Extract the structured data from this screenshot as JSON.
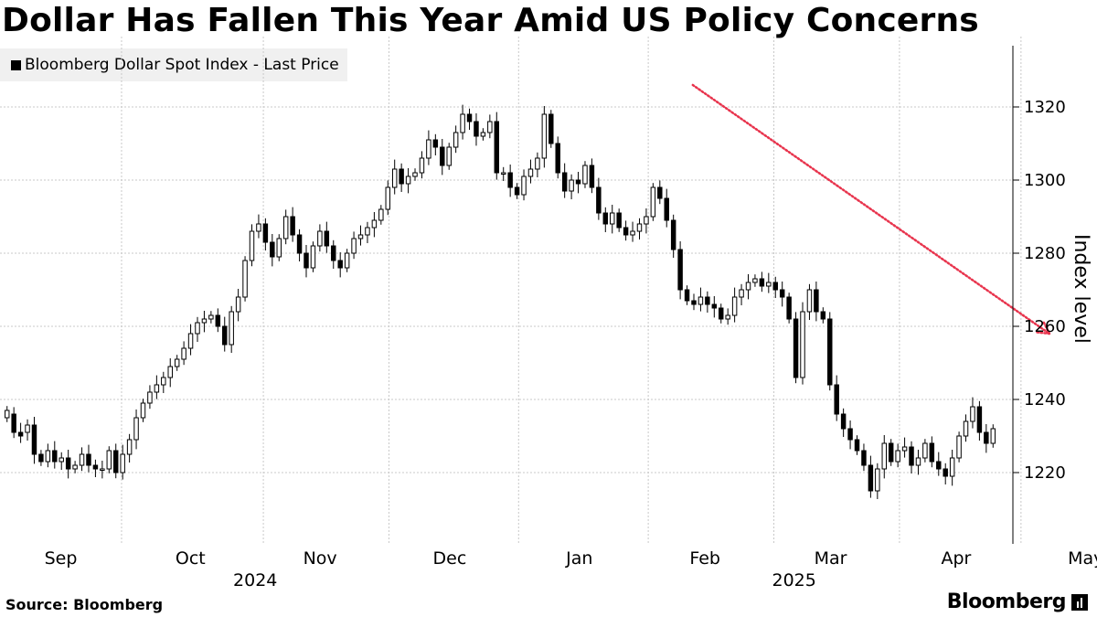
{
  "title": "Dollar Has Fallen This Year Amid US Policy Concerns",
  "legend_label": "Bloomberg Dollar Spot Index - Last Price",
  "source": "Source: Bloomberg",
  "brand": "Bloomberg",
  "colors": {
    "candle": "#000000",
    "arrow": "#e8344d",
    "grid": "#c8c8c8",
    "legend_bg": "#f0f0f0"
  },
  "chart_data": {
    "type": "candlestick",
    "title": "Dollar Has Fallen This Year Amid US Policy Concerns",
    "series_name": "Bloomberg Dollar Spot Index - Last Price",
    "ylabel": "Index level",
    "ylim": [
      1205,
      1335
    ],
    "yticks": [
      1220,
      1240,
      1260,
      1280,
      1300,
      1320
    ],
    "x_range": [
      0,
      250
    ],
    "x_ticks": [
      {
        "label": "Sep",
        "x": 15
      },
      {
        "label": "Oct",
        "x": 47
      },
      {
        "label": "Nov",
        "x": 79
      },
      {
        "label": "Dec",
        "x": 111
      },
      {
        "label": "Jan",
        "x": 143
      },
      {
        "label": "Feb",
        "x": 174
      },
      {
        "label": "Mar",
        "x": 205
      },
      {
        "label": "Apr",
        "x": 236
      },
      {
        "label": "May",
        "x": 268
      }
    ],
    "year_labels": [
      {
        "label": "2024",
        "x": 63
      },
      {
        "label": "2025",
        "x": 196
      }
    ],
    "gridlines_x": [
      30,
      65,
      96,
      128,
      160,
      191,
      222,
      252
    ],
    "annotation_arrow": {
      "from": [
        171,
        1326
      ],
      "to": [
        259,
        1258
      ],
      "style": "dotted"
    },
    "points": [
      [
        1235,
        1237
      ],
      [
        1236,
        1231
      ],
      [
        1231,
        1230
      ],
      [
        1231,
        1233
      ],
      [
        1233,
        1225
      ],
      [
        1225,
        1223
      ],
      [
        1223,
        1226
      ],
      [
        1226,
        1223
      ],
      [
        1223,
        1224
      ],
      [
        1224,
        1221
      ],
      [
        1221,
        1222
      ],
      [
        1222,
        1225
      ],
      [
        1225,
        1222
      ],
      [
        1222,
        1221
      ],
      [
        1221,
        1221
      ],
      [
        1221,
        1226
      ],
      [
        1226,
        1220
      ],
      [
        1220,
        1225
      ],
      [
        1225,
        1229
      ],
      [
        1229,
        1235
      ],
      [
        1235,
        1239
      ],
      [
        1239,
        1242
      ],
      [
        1242,
        1244
      ],
      [
        1244,
        1246
      ],
      [
        1246,
        1249
      ],
      [
        1249,
        1251
      ],
      [
        1251,
        1254
      ],
      [
        1254,
        1258
      ],
      [
        1258,
        1261
      ],
      [
        1261,
        1262
      ],
      [
        1262,
        1263
      ],
      [
        1263,
        1260
      ],
      [
        1260,
        1255
      ],
      [
        1255,
        1264
      ],
      [
        1264,
        1268
      ],
      [
        1268,
        1278
      ],
      [
        1278,
        1286
      ],
      [
        1286,
        1288
      ],
      [
        1288,
        1283
      ],
      [
        1283,
        1279
      ],
      [
        1279,
        1284
      ],
      [
        1284,
        1290
      ],
      [
        1290,
        1285
      ],
      [
        1285,
        1280
      ],
      [
        1280,
        1276
      ],
      [
        1276,
        1282
      ],
      [
        1282,
        1286
      ],
      [
        1286,
        1282
      ],
      [
        1282,
        1278
      ],
      [
        1278,
        1276
      ],
      [
        1276,
        1280
      ],
      [
        1280,
        1284
      ],
      [
        1284,
        1285
      ],
      [
        1285,
        1287
      ],
      [
        1287,
        1289
      ],
      [
        1289,
        1292
      ],
      [
        1292,
        1298
      ],
      [
        1298,
        1303
      ],
      [
        1303,
        1299
      ],
      [
        1299,
        1301
      ],
      [
        1301,
        1302
      ],
      [
        1302,
        1306
      ],
      [
        1306,
        1311
      ],
      [
        1311,
        1309
      ],
      [
        1309,
        1304
      ],
      [
        1304,
        1309
      ],
      [
        1309,
        1313
      ],
      [
        1313,
        1318
      ],
      [
        1318,
        1316
      ],
      [
        1316,
        1312
      ],
      [
        1312,
        1313
      ],
      [
        1313,
        1316
      ],
      [
        1316,
        1302
      ],
      [
        1302,
        1302
      ],
      [
        1302,
        1298
      ],
      [
        1298,
        1296
      ],
      [
        1296,
        1301
      ],
      [
        1301,
        1303
      ],
      [
        1303,
        1306
      ],
      [
        1306,
        1318
      ],
      [
        1318,
        1310
      ],
      [
        1310,
        1302
      ],
      [
        1302,
        1297
      ],
      [
        1297,
        1300
      ],
      [
        1300,
        1299
      ],
      [
        1299,
        1304
      ],
      [
        1304,
        1298
      ],
      [
        1298,
        1291
      ],
      [
        1291,
        1288
      ],
      [
        1288,
        1291
      ],
      [
        1291,
        1287
      ],
      [
        1287,
        1285
      ],
      [
        1285,
        1286
      ],
      [
        1286,
        1288
      ],
      [
        1288,
        1290
      ],
      [
        1290,
        1298
      ],
      [
        1298,
        1295
      ],
      [
        1295,
        1289
      ],
      [
        1289,
        1281
      ],
      [
        1281,
        1270
      ],
      [
        1270,
        1267
      ],
      [
        1267,
        1266
      ],
      [
        1266,
        1268
      ],
      [
        1268,
        1266
      ],
      [
        1266,
        1265
      ],
      [
        1265,
        1262
      ],
      [
        1262,
        1263
      ],
      [
        1263,
        1268
      ],
      [
        1268,
        1270
      ],
      [
        1270,
        1272
      ],
      [
        1272,
        1273
      ],
      [
        1273,
        1271
      ],
      [
        1271,
        1272
      ],
      [
        1272,
        1270
      ],
      [
        1270,
        1268
      ],
      [
        1268,
        1262
      ],
      [
        1262,
        1246
      ],
      [
        1246,
        1264
      ],
      [
        1264,
        1270
      ],
      [
        1270,
        1264
      ],
      [
        1264,
        1262
      ],
      [
        1262,
        1244
      ],
      [
        1244,
        1236
      ],
      [
        1236,
        1232
      ],
      [
        1232,
        1229
      ],
      [
        1229,
        1226
      ],
      [
        1226,
        1222
      ],
      [
        1222,
        1215
      ],
      [
        1215,
        1221
      ],
      [
        1221,
        1228
      ],
      [
        1228,
        1223
      ],
      [
        1223,
        1226
      ],
      [
        1226,
        1227
      ],
      [
        1227,
        1222
      ],
      [
        1222,
        1224
      ],
      [
        1224,
        1228
      ],
      [
        1228,
        1223
      ],
      [
        1223,
        1221
      ],
      [
        1221,
        1219
      ],
      [
        1219,
        1224
      ],
      [
        1224,
        1230
      ],
      [
        1230,
        1234
      ],
      [
        1234,
        1238
      ],
      [
        1238,
        1231
      ],
      [
        1231,
        1228
      ],
      [
        1228,
        1232
      ]
    ]
  }
}
